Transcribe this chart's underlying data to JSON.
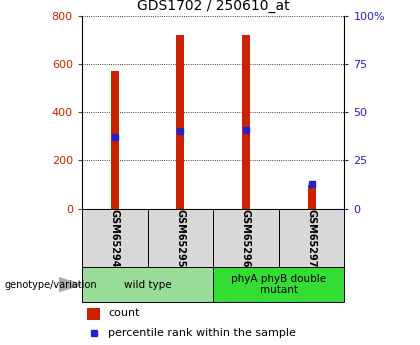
{
  "title": "GDS1702 / 250610_at",
  "samples": [
    "GSM65294",
    "GSM65295",
    "GSM65296",
    "GSM65297"
  ],
  "counts": [
    570,
    718,
    718,
    98
  ],
  "percentile_ranks": [
    37,
    40,
    41,
    13
  ],
  "ylim_left": [
    0,
    800
  ],
  "ylim_right": [
    0,
    100
  ],
  "yticks_left": [
    0,
    200,
    400,
    600,
    800
  ],
  "yticks_right": [
    0,
    25,
    50,
    75,
    100
  ],
  "bar_color": "#cc2200",
  "percentile_color": "#2222cc",
  "groups": [
    {
      "label": "wild type",
      "indices": [
        0,
        1
      ],
      "color": "#99dd99"
    },
    {
      "label": "phyA phyB double\nmutant",
      "indices": [
        2,
        3
      ],
      "color": "#33dd33"
    }
  ],
  "left_tick_color": "#cc2200",
  "right_tick_color": "#2222cc",
  "bg_plot": "#ffffff",
  "bg_sample_row": "#d8d8d8",
  "xlabel_group": "genotype/variation",
  "legend_count_label": "count",
  "legend_pct_label": "percentile rank within the sample"
}
